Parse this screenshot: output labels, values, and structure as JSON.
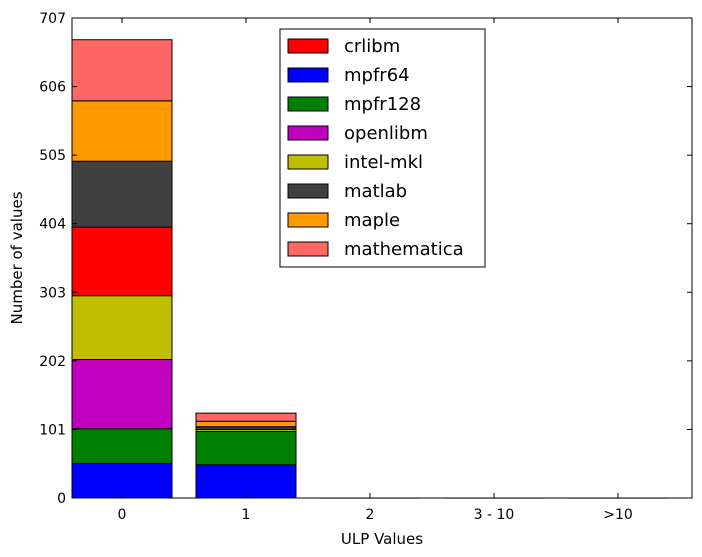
{
  "chart_data": {
    "type": "bar",
    "stacked": true,
    "categories": [
      "0",
      "1",
      "2",
      "3 - 10",
      ">10"
    ],
    "xlabel": "ULP Values",
    "ylabel": "Number of values",
    "ylim": [
      0,
      707
    ],
    "yticks": [
      0,
      101,
      202,
      303,
      404,
      505,
      606,
      707
    ],
    "legend_position": "top-center",
    "series": [
      {
        "name": "crlibm",
        "color": "#ff0000",
        "values": [
          101,
          0,
          0,
          0,
          0
        ]
      },
      {
        "name": "mpfr64",
        "color": "#0000ff",
        "values": [
          51,
          49,
          0,
          0,
          0
        ]
      },
      {
        "name": "mpfr128",
        "color": "#008000",
        "values": [
          51,
          49,
          0,
          0,
          0
        ]
      },
      {
        "name": "openlibm",
        "color": "#bf00bf",
        "values": [
          102,
          0,
          0,
          0,
          0
        ]
      },
      {
        "name": "intel-mkl",
        "color": "#bfbf00",
        "values": [
          94,
          3,
          0,
          0,
          0
        ]
      },
      {
        "name": "matlab",
        "color": "#404040",
        "values": [
          97,
          4,
          0,
          0,
          0
        ]
      },
      {
        "name": "maple",
        "color": "#ff9900",
        "values": [
          89,
          8,
          0,
          0,
          0
        ]
      },
      {
        "name": "mathematica",
        "color": "#ff6666",
        "values": [
          90,
          12,
          0,
          0,
          0
        ]
      }
    ],
    "stack_order": [
      "mpfr64",
      "mpfr128",
      "openlibm",
      "intel-mkl",
      "crlibm",
      "matlab",
      "maple",
      "mathematica"
    ]
  }
}
